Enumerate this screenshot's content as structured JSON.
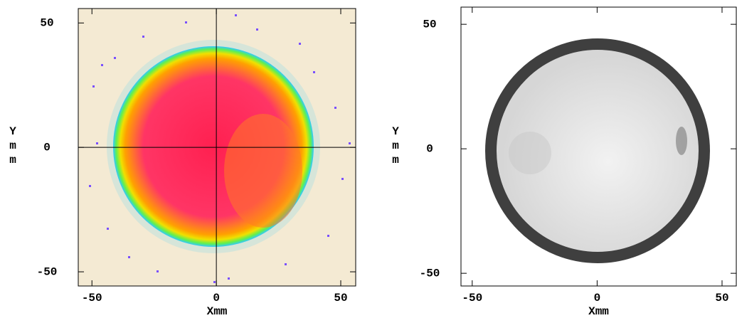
{
  "chart_data": [
    {
      "type": "heatmap",
      "xlabel": "Xmm",
      "ylabel": "Ymm",
      "xlim": [
        -55.5,
        56
      ],
      "ylim": [
        -55.7,
        55.8
      ],
      "xticks": [
        -50,
        0,
        50
      ],
      "yticks": [
        -50,
        0,
        50
      ],
      "crosshair": true
    },
    {
      "type": "heatmap",
      "xlabel": "Xmm",
      "ylabel": "Ymm",
      "xlim": [
        -54.5,
        55.7
      ],
      "ylim": [
        -55.1,
        56.9
      ],
      "xticks": [
        -50,
        0,
        50
      ],
      "yticks": [
        -50,
        0,
        50
      ],
      "crosshair": false
    }
  ]
}
